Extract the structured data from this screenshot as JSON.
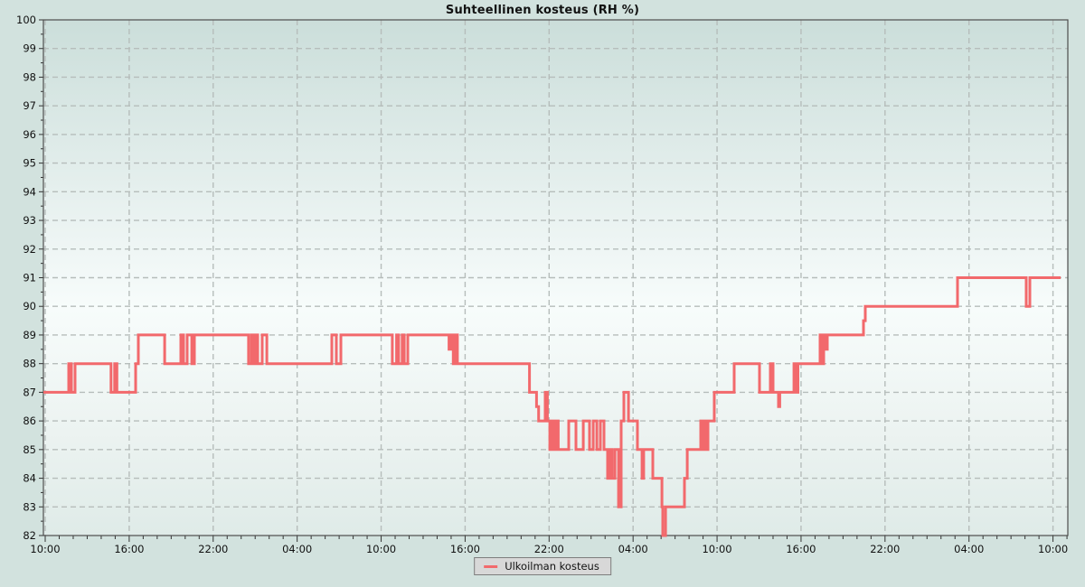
{
  "title": "Suhteellinen kosteus (RH %)",
  "legend": {
    "label": "Ulkoilman kosteus",
    "position": "bottom-center"
  },
  "colors": {
    "line": "#f2696c",
    "grid": "#b6bdbb",
    "axis": "#4d4d4d",
    "tick": "#333333",
    "text": "#111111",
    "page_bg": "#d2e2de",
    "plot_bg_top": "#cbdeda",
    "plot_bg_mid": "#f7fcfb",
    "plot_bg_bottom": "#dfebe8",
    "legend_bg": "#d8d8d8",
    "legend_border": "#7d7d7d"
  },
  "chart_data": {
    "type": "line",
    "step": true,
    "title": "Suhteellinen kosteus (RH %)",
    "xlabel": "",
    "ylabel": "RH %",
    "ylim": [
      82,
      100
    ],
    "grid": true,
    "y_ticks": [
      82,
      83,
      84,
      85,
      86,
      87,
      88,
      89,
      90,
      91,
      92,
      93,
      94,
      95,
      96,
      97,
      98,
      99,
      100
    ],
    "x_axis": {
      "unit": "hours after first tick (10:00, day 1); minor ticks hourly, labels every 6 h",
      "domain_hours": [
        -0.13,
        73.06
      ],
      "labels": [
        {
          "t": 0,
          "label": "10:00"
        },
        {
          "t": 6,
          "label": "16:00"
        },
        {
          "t": 12,
          "label": "22:00"
        },
        {
          "t": 18,
          "label": "04:00"
        },
        {
          "t": 24,
          "label": "10:00"
        },
        {
          "t": 30,
          "label": "16:00"
        },
        {
          "t": 36,
          "label": "22:00"
        },
        {
          "t": 42,
          "label": "04:00"
        },
        {
          "t": 48,
          "label": "10:00"
        },
        {
          "t": 54,
          "label": "16:00"
        },
        {
          "t": 60,
          "label": "22:00"
        },
        {
          "t": 66,
          "label": "04:00"
        },
        {
          "t": 72,
          "label": "10:00"
        }
      ]
    },
    "legend_position": "bottom-center",
    "series": [
      {
        "name": "Ulkoilman kosteus",
        "color": "#f2696c",
        "points": [
          [
            -0.13,
            87
          ],
          [
            1.68,
            88
          ],
          [
            1.87,
            87
          ],
          [
            2.13,
            88
          ],
          [
            4.7,
            87
          ],
          [
            4.96,
            88
          ],
          [
            5.12,
            87
          ],
          [
            6.46,
            88
          ],
          [
            6.65,
            89
          ],
          [
            8.53,
            88
          ],
          [
            9.69,
            89
          ],
          [
            9.88,
            88
          ],
          [
            10.14,
            89
          ],
          [
            10.47,
            88
          ],
          [
            10.66,
            89
          ],
          [
            14.53,
            88
          ],
          [
            14.73,
            89
          ],
          [
            14.86,
            88
          ],
          [
            15.05,
            89
          ],
          [
            15.18,
            88
          ],
          [
            15.5,
            89
          ],
          [
            15.83,
            88
          ],
          [
            20.48,
            89
          ],
          [
            20.8,
            88
          ],
          [
            21.12,
            89
          ],
          [
            24.8,
            88
          ],
          [
            25.1,
            89
          ],
          [
            25.25,
            88
          ],
          [
            25.5,
            89
          ],
          [
            25.65,
            88
          ],
          [
            25.9,
            89
          ],
          [
            28.85,
            88.5
          ],
          [
            29.0,
            89
          ],
          [
            29.15,
            88
          ],
          [
            29.3,
            89
          ],
          [
            29.45,
            88
          ],
          [
            34.6,
            87
          ],
          [
            35.1,
            86.5
          ],
          [
            35.25,
            86
          ],
          [
            35.72,
            87
          ],
          [
            35.88,
            86
          ],
          [
            36.05,
            85
          ],
          [
            36.2,
            86
          ],
          [
            36.35,
            85
          ],
          [
            36.5,
            86
          ],
          [
            36.65,
            85
          ],
          [
            37.4,
            86
          ],
          [
            37.92,
            85
          ],
          [
            38.44,
            86
          ],
          [
            38.89,
            85
          ],
          [
            39.15,
            86
          ],
          [
            39.41,
            85
          ],
          [
            39.66,
            86
          ],
          [
            39.92,
            85
          ],
          [
            40.18,
            84
          ],
          [
            40.31,
            85
          ],
          [
            40.5,
            84
          ],
          [
            40.7,
            85
          ],
          [
            40.96,
            83
          ],
          [
            41.15,
            86
          ],
          [
            41.34,
            87
          ],
          [
            41.67,
            86
          ],
          [
            42.31,
            85
          ],
          [
            42.64,
            84
          ],
          [
            42.76,
            85
          ],
          [
            43.41,
            84
          ],
          [
            44.06,
            83
          ],
          [
            44.12,
            82
          ],
          [
            44.32,
            83
          ],
          [
            45.67,
            84
          ],
          [
            45.87,
            85
          ],
          [
            46.83,
            86
          ],
          [
            46.96,
            85
          ],
          [
            47.09,
            86
          ],
          [
            47.22,
            85
          ],
          [
            47.35,
            86
          ],
          [
            47.8,
            87
          ],
          [
            49.22,
            88
          ],
          [
            51.03,
            87
          ],
          [
            51.81,
            88
          ],
          [
            52.0,
            87
          ],
          [
            52.39,
            86.5
          ],
          [
            52.48,
            87
          ],
          [
            53.49,
            88
          ],
          [
            53.62,
            87
          ],
          [
            53.78,
            88
          ],
          [
            55.36,
            89
          ],
          [
            55.49,
            88
          ],
          [
            55.62,
            89
          ],
          [
            55.75,
            88.5
          ],
          [
            55.88,
            89
          ],
          [
            58.46,
            89.5
          ],
          [
            58.59,
            90
          ],
          [
            65.18,
            91
          ],
          [
            70.09,
            90
          ],
          [
            70.35,
            91
          ],
          [
            72.55,
            91
          ]
        ]
      }
    ]
  }
}
